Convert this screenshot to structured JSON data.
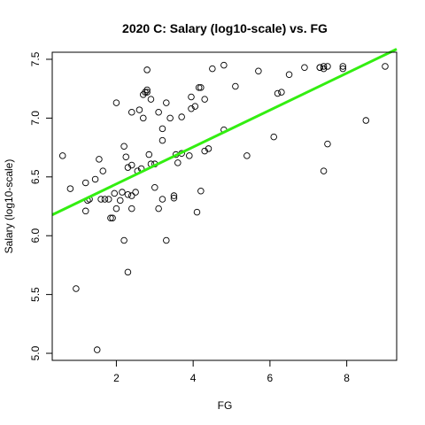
{
  "chart_data": {
    "type": "scatter",
    "title": "2020 C: Salary (log10-scale) vs. FG",
    "xlabel": "FG",
    "ylabel": "Salary (log10-scale)",
    "xlim": [
      0.33,
      9.3
    ],
    "ylim": [
      4.94,
      7.56
    ],
    "x_ticks": [
      2,
      4,
      6,
      8
    ],
    "y_ticks": [
      5.0,
      5.5,
      6.0,
      6.5,
      7.0,
      7.5
    ],
    "x_tick_labels": [
      "2",
      "4",
      "6",
      "8"
    ],
    "y_tick_labels": [
      "5.0",
      "5.5",
      "6.0",
      "6.5",
      "7.0",
      "7.5"
    ],
    "grid": false,
    "fit_line": {
      "color": "#33ee11",
      "intercept": 6.126,
      "slope": 0.157
    },
    "points": [
      [
        0.6,
        6.68
      ],
      [
        0.8,
        6.4
      ],
      [
        0.95,
        5.55
      ],
      [
        1.2,
        6.21
      ],
      [
        1.2,
        6.45
      ],
      [
        1.25,
        6.3
      ],
      [
        1.3,
        6.31
      ],
      [
        1.45,
        6.48
      ],
      [
        1.5,
        5.03
      ],
      [
        1.55,
        6.65
      ],
      [
        1.6,
        6.31
      ],
      [
        1.65,
        6.55
      ],
      [
        1.7,
        6.31
      ],
      [
        1.8,
        6.31
      ],
      [
        1.85,
        6.15
      ],
      [
        1.9,
        6.15
      ],
      [
        1.95,
        6.36
      ],
      [
        2.0,
        7.13
      ],
      [
        2.0,
        6.23
      ],
      [
        2.1,
        6.3
      ],
      [
        2.15,
        6.37
      ],
      [
        2.2,
        6.76
      ],
      [
        2.2,
        5.96
      ],
      [
        2.25,
        6.67
      ],
      [
        2.3,
        6.58
      ],
      [
        2.3,
        5.69
      ],
      [
        2.3,
        6.35
      ],
      [
        2.4,
        6.6
      ],
      [
        2.4,
        7.05
      ],
      [
        2.4,
        6.34
      ],
      [
        2.4,
        6.23
      ],
      [
        2.5,
        6.37
      ],
      [
        2.55,
        6.55
      ],
      [
        2.6,
        7.07
      ],
      [
        2.65,
        6.57
      ],
      [
        2.7,
        7.0
      ],
      [
        2.7,
        7.2
      ],
      [
        2.75,
        7.22
      ],
      [
        2.8,
        7.22
      ],
      [
        2.8,
        7.24
      ],
      [
        2.8,
        7.41
      ],
      [
        2.85,
        6.69
      ],
      [
        2.9,
        6.61
      ],
      [
        2.9,
        7.16
      ],
      [
        3.0,
        6.61
      ],
      [
        3.0,
        6.41
      ],
      [
        3.1,
        7.05
      ],
      [
        3.1,
        6.23
      ],
      [
        3.2,
        6.91
      ],
      [
        3.2,
        6.81
      ],
      [
        3.2,
        6.31
      ],
      [
        3.3,
        7.13
      ],
      [
        3.3,
        5.96
      ],
      [
        3.4,
        7.0
      ],
      [
        3.5,
        6.34
      ],
      [
        3.5,
        6.32
      ],
      [
        3.55,
        6.69
      ],
      [
        3.6,
        6.62
      ],
      [
        3.7,
        7.01
      ],
      [
        3.7,
        6.7
      ],
      [
        3.9,
        6.68
      ],
      [
        3.95,
        7.18
      ],
      [
        3.95,
        7.08
      ],
      [
        4.05,
        7.1
      ],
      [
        4.1,
        6.2
      ],
      [
        4.15,
        7.26
      ],
      [
        4.2,
        7.26
      ],
      [
        4.2,
        6.38
      ],
      [
        4.3,
        7.16
      ],
      [
        4.3,
        6.72
      ],
      [
        4.4,
        6.74
      ],
      [
        4.5,
        7.42
      ],
      [
        4.8,
        7.45
      ],
      [
        4.8,
        6.9
      ],
      [
        5.1,
        7.27
      ],
      [
        5.4,
        6.68
      ],
      [
        5.7,
        7.4
      ],
      [
        6.1,
        6.84
      ],
      [
        6.2,
        7.21
      ],
      [
        6.3,
        7.22
      ],
      [
        6.5,
        7.37
      ],
      [
        6.9,
        7.43
      ],
      [
        7.3,
        7.43
      ],
      [
        7.3,
        7.43
      ],
      [
        7.4,
        7.44
      ],
      [
        7.4,
        7.42
      ],
      [
        7.4,
        6.55
      ],
      [
        7.5,
        7.44
      ],
      [
        7.5,
        6.78
      ],
      [
        7.9,
        7.42
      ],
      [
        7.9,
        7.44
      ],
      [
        8.5,
        6.98
      ],
      [
        9.0,
        7.44
      ]
    ]
  }
}
